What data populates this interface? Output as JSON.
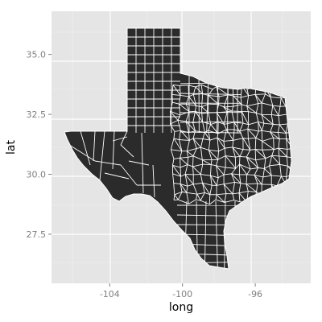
{
  "chart_data": {
    "type": "map",
    "xlabel": "long",
    "ylabel": "lat",
    "xlim": [
      -107.2,
      -92.95
    ],
    "ylim": [
      25.45,
      36.8
    ],
    "x_ticks": [
      -104,
      -100,
      -96
    ],
    "x_tick_labels": [
      "-104",
      "-100",
      "-96"
    ],
    "y_ticks": [
      27.5,
      30.0,
      32.5,
      35.0
    ],
    "y_tick_labels": [
      "27.5",
      "30.0",
      "32.5",
      "35.0"
    ],
    "grid": true,
    "legend": "none",
    "region": "Texas counties",
    "colors": {
      "panel": "#e5e5e5",
      "grid_major": "#ffffff",
      "grid_minor": "#f2f2f2",
      "fill": "#2b2b2b",
      "border": "#ffffff"
    }
  }
}
